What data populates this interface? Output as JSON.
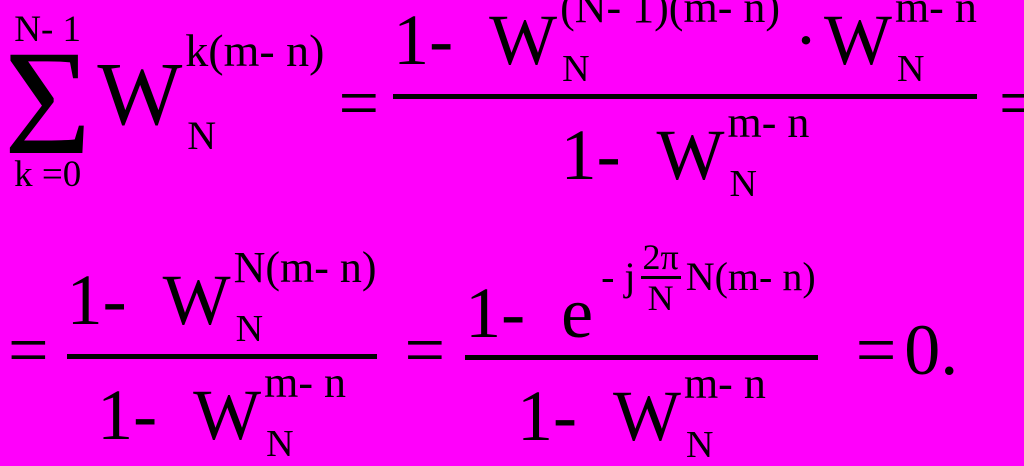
{
  "colors": {
    "background": "#FF00FB",
    "ink": "#000000"
  },
  "formula": {
    "equals": "=",
    "sum": {
      "upper": "N- 1",
      "sigma": "Σ",
      "lower": "k =0"
    },
    "summand": {
      "base": "W",
      "sup": "k(m- n)",
      "sub": "N"
    },
    "frac1": {
      "num": {
        "lead": "1-  ",
        "w1": {
          "base": "W",
          "sup": "(N- 1)(m- n)",
          "sub": "N"
        },
        "times": "·",
        "w2": {
          "base": "W",
          "sup": "m- n",
          "sub": "N"
        }
      },
      "den": {
        "lead": "1-  ",
        "w": {
          "base": "W",
          "sup": "m- n",
          "sub": "N"
        }
      }
    },
    "frac2": {
      "num": {
        "lead": "1-  ",
        "w": {
          "base": "W",
          "sup": "N(m- n)",
          "sub": "N"
        }
      },
      "den": {
        "lead": "1-  ",
        "w": {
          "base": "W",
          "sup": "m- n",
          "sub": "N"
        }
      }
    },
    "frac3": {
      "num": {
        "lead": "1-  ",
        "e": "e",
        "exp": {
          "prefix": "- j",
          "mini_num": "2π",
          "mini_den": "N",
          "suffix": "N(m- n)"
        }
      },
      "den": {
        "lead": "1-  ",
        "w": {
          "base": "W",
          "sup": "m- n",
          "sub": "N"
        }
      }
    },
    "result": "0."
  }
}
